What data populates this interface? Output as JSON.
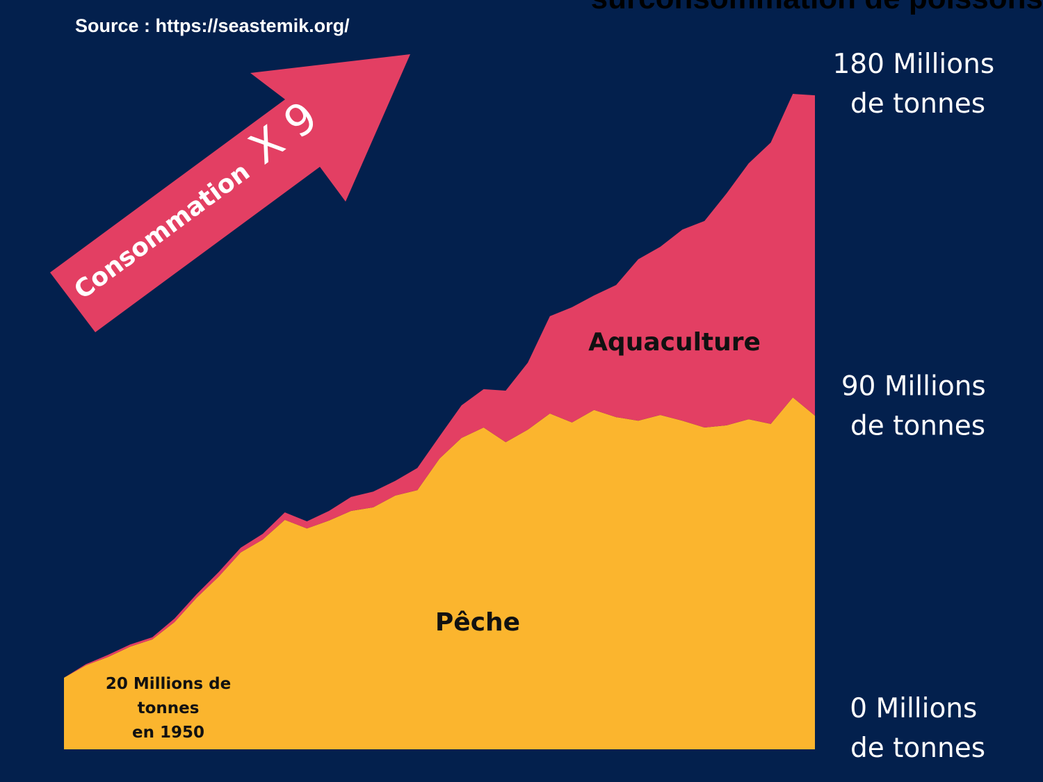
{
  "title": "surconsommation de poissons",
  "source": "Source : https://seastemik.org/",
  "arrow": {
    "label": "Consommation",
    "factor": "X 9"
  },
  "chart_data": {
    "type": "stacked-area",
    "categories": [
      null,
      null,
      null,
      null,
      null,
      null,
      null,
      null,
      null,
      null,
      null,
      null,
      null,
      null,
      null,
      null,
      null,
      null,
      null,
      null,
      null,
      null,
      null,
      null,
      null,
      null,
      null,
      null,
      null,
      null,
      null,
      null,
      null,
      null,
      null
    ],
    "series": [
      {
        "name": "Pêche",
        "color": "#fbb52e",
        "values": [
          20.0,
          23.5,
          25.8,
          28.7,
          30.7,
          35.5,
          42.3,
          48.2,
          55.0,
          58.6,
          64.1,
          61.7,
          63.9,
          66.6,
          67.6,
          70.9,
          72.4,
          81.2,
          87.0,
          89.9,
          85.8,
          89.3,
          93.8,
          91.3,
          94.8,
          92.8,
          91.8,
          93.4,
          91.8,
          89.9,
          90.5,
          92.2,
          90.9,
          98.3,
          93.2
        ]
      },
      {
        "name": "Aquaculture",
        "color": "#e33f63",
        "values": [
          0.0,
          0.3,
          0.6,
          0.6,
          0.6,
          1.0,
          1.0,
          1.3,
          1.3,
          1.6,
          2.1,
          2.0,
          2.7,
          3.9,
          4.4,
          4.1,
          6.2,
          6.2,
          9.1,
          10.7,
          14.4,
          18.7,
          27.2,
          32.2,
          32.0,
          36.9,
          45.1,
          47.0,
          53.4,
          57.7,
          64.8,
          71.5,
          78.6,
          84.8,
          89.5
        ]
      }
    ],
    "ylim": [
      0,
      190
    ],
    "yticks": [
      {
        "value": 0,
        "label": "0 Millions de tonnes"
      },
      {
        "value": 90,
        "label": "90 Millions de tonnes"
      },
      {
        "value": 180,
        "label": "180 Millions de tonnes"
      }
    ],
    "annotation": [
      "20 Millions de",
      "tonnes",
      "en 1950"
    ]
  }
}
